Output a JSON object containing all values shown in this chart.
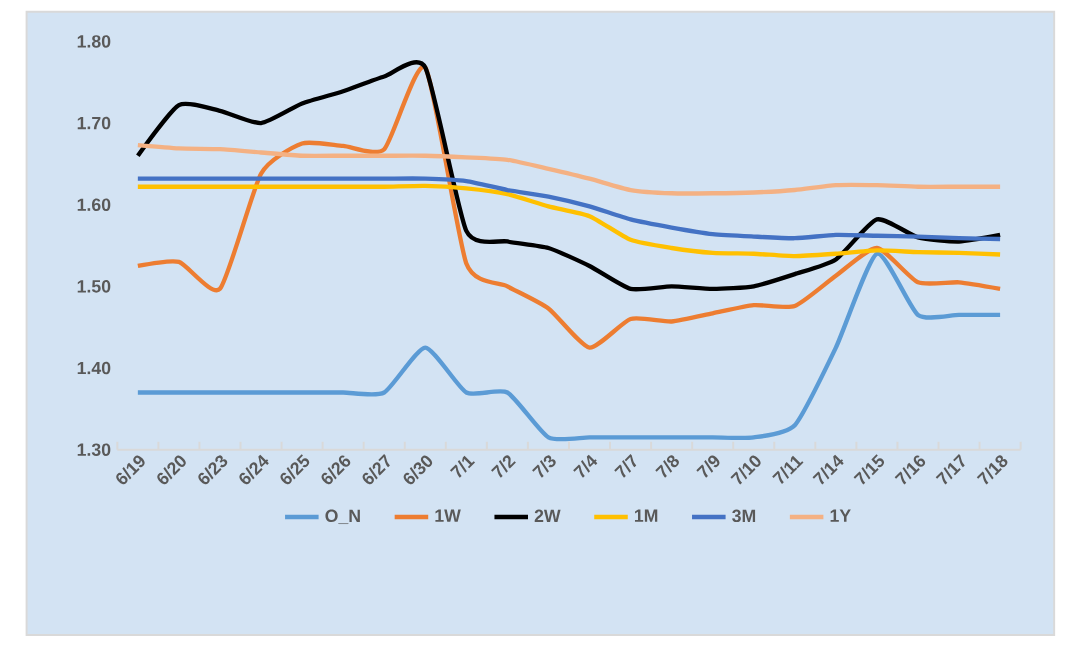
{
  "chart_data": {
    "type": "line",
    "categories": [
      "6/19",
      "6/20",
      "6/23",
      "6/24",
      "6/25",
      "6/26",
      "6/27",
      "6/30",
      "7/1",
      "7/2",
      "7/3",
      "7/4",
      "7/7",
      "7/8",
      "7/9",
      "7/10",
      "7/11",
      "7/14",
      "7/15",
      "7/16",
      "7/17",
      "7/18"
    ],
    "series": [
      {
        "name": "O_N",
        "color": "#5b9bd5",
        "values": [
          1.37,
          1.37,
          1.37,
          1.37,
          1.37,
          1.37,
          1.37,
          1.425,
          1.37,
          1.37,
          1.315,
          1.315,
          1.315,
          1.315,
          1.315,
          1.315,
          1.33,
          1.425,
          1.54,
          1.465,
          1.465,
          1.465
        ]
      },
      {
        "name": "1W",
        "color": "#ed7d31",
        "values": [
          1.525,
          1.53,
          1.497,
          1.638,
          1.675,
          1.672,
          1.668,
          1.768,
          1.528,
          1.5,
          1.473,
          1.425,
          1.46,
          1.457,
          1.467,
          1.477,
          1.476,
          1.513,
          1.547,
          1.505,
          1.505,
          1.497
        ]
      },
      {
        "name": "2W",
        "color": "#000000",
        "values": [
          1.66,
          1.722,
          1.715,
          1.7,
          1.724,
          1.739,
          1.757,
          1.768,
          1.568,
          1.555,
          1.547,
          1.525,
          1.497,
          1.5,
          1.497,
          1.5,
          1.515,
          1.533,
          1.582,
          1.56,
          1.555,
          1.563
        ]
      },
      {
        "name": "1M",
        "color": "#ffc000",
        "values": [
          1.622,
          1.622,
          1.622,
          1.622,
          1.622,
          1.622,
          1.622,
          1.623,
          1.62,
          1.613,
          1.598,
          1.586,
          1.557,
          1.547,
          1.541,
          1.54,
          1.537,
          1.54,
          1.544,
          1.542,
          1.541,
          1.539
        ]
      },
      {
        "name": "3M",
        "color": "#4472c4",
        "values": [
          1.632,
          1.632,
          1.632,
          1.632,
          1.632,
          1.632,
          1.632,
          1.632,
          1.629,
          1.618,
          1.61,
          1.598,
          1.582,
          1.572,
          1.564,
          1.561,
          1.559,
          1.563,
          1.562,
          1.561,
          1.559,
          1.558
        ]
      },
      {
        "name": "1Y",
        "color": "#f4b183",
        "values": [
          1.673,
          1.669,
          1.668,
          1.664,
          1.66,
          1.66,
          1.66,
          1.66,
          1.658,
          1.655,
          1.644,
          1.632,
          1.618,
          1.614,
          1.614,
          1.615,
          1.618,
          1.624,
          1.624,
          1.622,
          1.622,
          1.622
        ]
      }
    ],
    "ylim": [
      1.3,
      1.8
    ],
    "yticks": [
      {
        "value": 1.3,
        "label": "1.30"
      },
      {
        "value": 1.4,
        "label": "1.40"
      },
      {
        "value": 1.5,
        "label": "1.50"
      },
      {
        "value": 1.6,
        "label": "1.60"
      },
      {
        "value": 1.7,
        "label": "1.70"
      },
      {
        "value": 1.8,
        "label": "1.80"
      }
    ],
    "legend": "bottom",
    "grid": false,
    "marker": "none",
    "line_style": "solid"
  }
}
